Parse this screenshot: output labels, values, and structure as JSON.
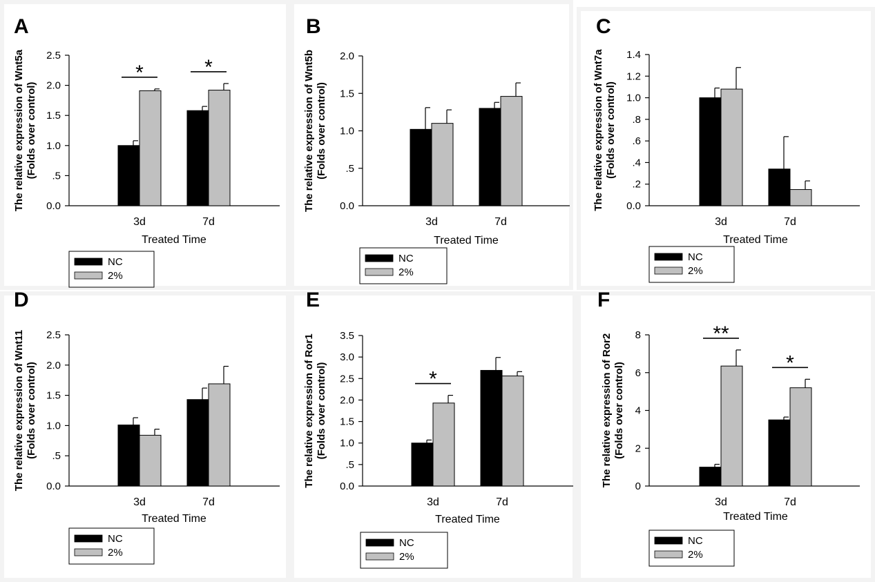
{
  "colors": {
    "nc": "#000000",
    "treated": "#c0c0c0",
    "axis": "#000000"
  },
  "chart_data": [
    {
      "type": "bar",
      "panel_label": "A",
      "xlabel": "Treated Time",
      "ylabel_line1": "The relative expression of Wnt5a",
      "ylabel_line2": "(Folds over control)",
      "categories": [
        "3d",
        "7d"
      ],
      "ylim": [
        0,
        2.5
      ],
      "yticks": [
        0,
        0.5,
        1.0,
        1.5,
        2.0,
        2.5
      ],
      "ytick_labels": [
        "0.0",
        ".5",
        "1.0",
        "1.5",
        "2.0",
        "2.5"
      ],
      "series": [
        {
          "name": "NC",
          "values": [
            1.0,
            1.58
          ],
          "errors": [
            0.08,
            0.07
          ]
        },
        {
          "name": "2%",
          "values": [
            1.91,
            1.92
          ],
          "errors": [
            0.03,
            0.11
          ]
        }
      ],
      "significance": [
        "*",
        "*"
      ]
    },
    {
      "type": "bar",
      "panel_label": "B",
      "xlabel": "Treated Time",
      "ylabel_line1": "The relative expression of Wnt5b",
      "ylabel_line2": "(Folds over control)",
      "categories": [
        "3d",
        "7d"
      ],
      "ylim": [
        0,
        2.0
      ],
      "yticks": [
        0,
        0.5,
        1.0,
        1.5,
        2.0
      ],
      "ytick_labels": [
        "0.0",
        ".5",
        "1.0",
        "1.5",
        "2.0"
      ],
      "series": [
        {
          "name": "NC",
          "values": [
            1.02,
            1.3
          ],
          "errors": [
            0.29,
            0.08
          ]
        },
        {
          "name": "2%",
          "values": [
            1.1,
            1.46
          ],
          "errors": [
            0.18,
            0.18
          ]
        }
      ],
      "significance": [
        "",
        ""
      ]
    },
    {
      "type": "bar",
      "panel_label": "C",
      "xlabel": "Treated Time",
      "ylabel_line1": "The relative expression of Wnt7a",
      "ylabel_line2": "(Folds over control)",
      "categories": [
        "3d",
        "7d"
      ],
      "ylim": [
        0,
        1.4
      ],
      "yticks": [
        0,
        0.2,
        0.4,
        0.6,
        0.8,
        1.0,
        1.2,
        1.4
      ],
      "ytick_labels": [
        "0.0",
        ".2",
        ".4",
        ".6",
        ".8",
        "1.0",
        "1.2",
        "1.4"
      ],
      "series": [
        {
          "name": "NC",
          "values": [
            1.0,
            0.34
          ],
          "errors": [
            0.09,
            0.3
          ]
        },
        {
          "name": "2%",
          "values": [
            1.08,
            0.15
          ],
          "errors": [
            0.2,
            0.08
          ]
        }
      ],
      "significance": [
        "",
        ""
      ]
    },
    {
      "type": "bar",
      "panel_label": "D",
      "xlabel": "Treated Time",
      "ylabel_line1": "The relative expression of Wnt11",
      "ylabel_line2": "(Folds over control)",
      "categories": [
        "3d",
        "7d"
      ],
      "ylim": [
        0,
        2.5
      ],
      "yticks": [
        0,
        0.5,
        1.0,
        1.5,
        2.0,
        2.5
      ],
      "ytick_labels": [
        "0.0",
        ".5",
        "1.0",
        "1.5",
        "2.0",
        "2.5"
      ],
      "series": [
        {
          "name": "NC",
          "values": [
            1.01,
            1.43
          ],
          "errors": [
            0.12,
            0.19
          ]
        },
        {
          "name": "2%",
          "values": [
            0.84,
            1.69
          ],
          "errors": [
            0.1,
            0.29
          ]
        }
      ],
      "significance": [
        "",
        ""
      ]
    },
    {
      "type": "bar",
      "panel_label": "E",
      "xlabel": "Treated Time",
      "ylabel_line1": "The relative expression of Ror1",
      "ylabel_line2": "(Folds over control)",
      "categories": [
        "3d",
        "7d"
      ],
      "ylim": [
        0,
        3.5
      ],
      "yticks": [
        0,
        0.5,
        1.0,
        1.5,
        2.0,
        2.5,
        3.0,
        3.5
      ],
      "ytick_labels": [
        "0.0",
        ".5",
        "1.0",
        "1.5",
        "2.0",
        "2.5",
        "3.0",
        "3.5"
      ],
      "series": [
        {
          "name": "NC",
          "values": [
            1.0,
            2.69
          ],
          "errors": [
            0.07,
            0.3
          ]
        },
        {
          "name": "2%",
          "values": [
            1.93,
            2.56
          ],
          "errors": [
            0.18,
            0.1
          ]
        }
      ],
      "significance": [
        "*",
        ""
      ]
    },
    {
      "type": "bar",
      "panel_label": "F",
      "xlabel": "Treated Time",
      "ylabel_line1": "The relative expression of Ror2",
      "ylabel_line2": "(Folds over control)",
      "categories": [
        "3d",
        "7d"
      ],
      "ylim": [
        0,
        8
      ],
      "yticks": [
        0,
        2,
        4,
        6,
        8
      ],
      "ytick_labels": [
        "0",
        "2",
        "4",
        "6",
        "8"
      ],
      "series": [
        {
          "name": "NC",
          "values": [
            1.0,
            3.5
          ],
          "errors": [
            0.15,
            0.15
          ]
        },
        {
          "name": "2%",
          "values": [
            6.35,
            5.2
          ],
          "errors": [
            0.85,
            0.45
          ]
        }
      ],
      "significance": [
        "**",
        "*"
      ]
    }
  ]
}
